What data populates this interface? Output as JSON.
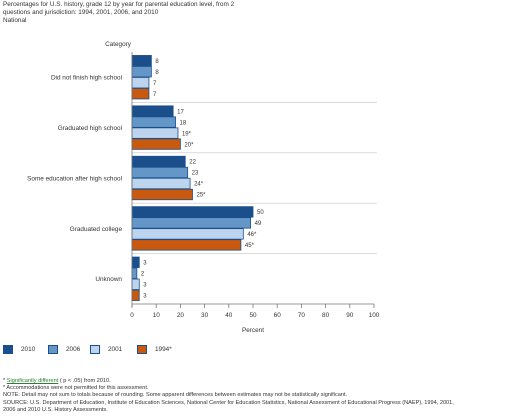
{
  "header": {
    "line1": "Percentages for U.S. history, grade 12 by year for parental education level, from 2",
    "line2": "questions and jurisdiction: 1994, 2001, 2006, and 2010",
    "jurisdiction": "National"
  },
  "chart_data": {
    "type": "bar",
    "orientation": "horizontal",
    "category_axis_title": "Category",
    "xlabel": "Percent",
    "xlim": [
      0,
      100
    ],
    "xticks": [
      0,
      10,
      20,
      30,
      40,
      50,
      60,
      70,
      80,
      90,
      100
    ],
    "categories": [
      "Did not finish high school",
      "Graduated high school",
      "Some education after high school",
      "Graduated college",
      "Unknown"
    ],
    "series": [
      {
        "name": "2010",
        "color": "#1a4f8b",
        "values": [
          8,
          17,
          22,
          50,
          3
        ],
        "labels": [
          "8",
          "17",
          "22",
          "50",
          "3"
        ]
      },
      {
        "name": "2006",
        "color": "#6496c8",
        "values": [
          8,
          18,
          23,
          49,
          2
        ],
        "labels": [
          "8",
          "18",
          "23",
          "49",
          "2"
        ]
      },
      {
        "name": "2001",
        "color": "#bcd4ee",
        "values": [
          7,
          19,
          24,
          46,
          3
        ],
        "labels": [
          "7",
          "19*",
          "24*",
          "46*",
          "3"
        ]
      },
      {
        "name": "1994*",
        "color": "#c8590e",
        "values": [
          7,
          20,
          25,
          45,
          3
        ],
        "labels": [
          "7",
          "20*",
          "25*",
          "45*",
          "3"
        ]
      }
    ],
    "grid": false,
    "legend_position": "bottom"
  },
  "footer": {
    "note_star": "*",
    "sig_link": "Significantly different",
    "sig_rest": "( p < .05) from 2010.",
    "accom": "* Accommodations were not permitted for this assessment.",
    "note": "NOTE:  Detail may not sum to totals because of rounding. Some apparent differences between estimates may not be statistically significant.",
    "source1": "SOURCE: U.S. Department of Education, Institute of Education Sciences, National Center for Education Statistics, National Assessment of Educational Progress (NAEP), 1994, 2001,",
    "source2": "2006 and 2010 U.S. History Assessments."
  }
}
